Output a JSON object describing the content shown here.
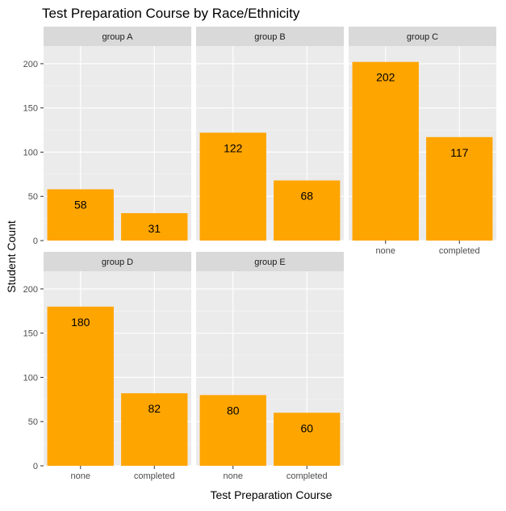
{
  "chart_data": {
    "type": "bar",
    "title": "Test Preparation Course by Race/Ethnicity",
    "xlabel": "Test Preparation Course",
    "ylabel": "Student Count",
    "categories": [
      "none",
      "completed"
    ],
    "ylim": [
      0,
      220
    ],
    "y_ticks": [
      0,
      50,
      100,
      150,
      200
    ],
    "y_tick_labels": [
      "0",
      "50",
      "100",
      "150",
      "200"
    ],
    "bar_color": "#FFA500",
    "grid": true,
    "facets": [
      {
        "name": "group A",
        "values": [
          58,
          31
        ],
        "value_labels": [
          "58",
          "31"
        ]
      },
      {
        "name": "group B",
        "values": [
          122,
          68
        ],
        "value_labels": [
          "122",
          "68"
        ]
      },
      {
        "name": "group C",
        "values": [
          202,
          117
        ],
        "value_labels": [
          "202",
          "117"
        ]
      },
      {
        "name": "group D",
        "values": [
          180,
          82
        ],
        "value_labels": [
          "180",
          "82"
        ]
      },
      {
        "name": "group E",
        "values": [
          80,
          60
        ],
        "value_labels": [
          "80",
          "60"
        ]
      }
    ]
  }
}
